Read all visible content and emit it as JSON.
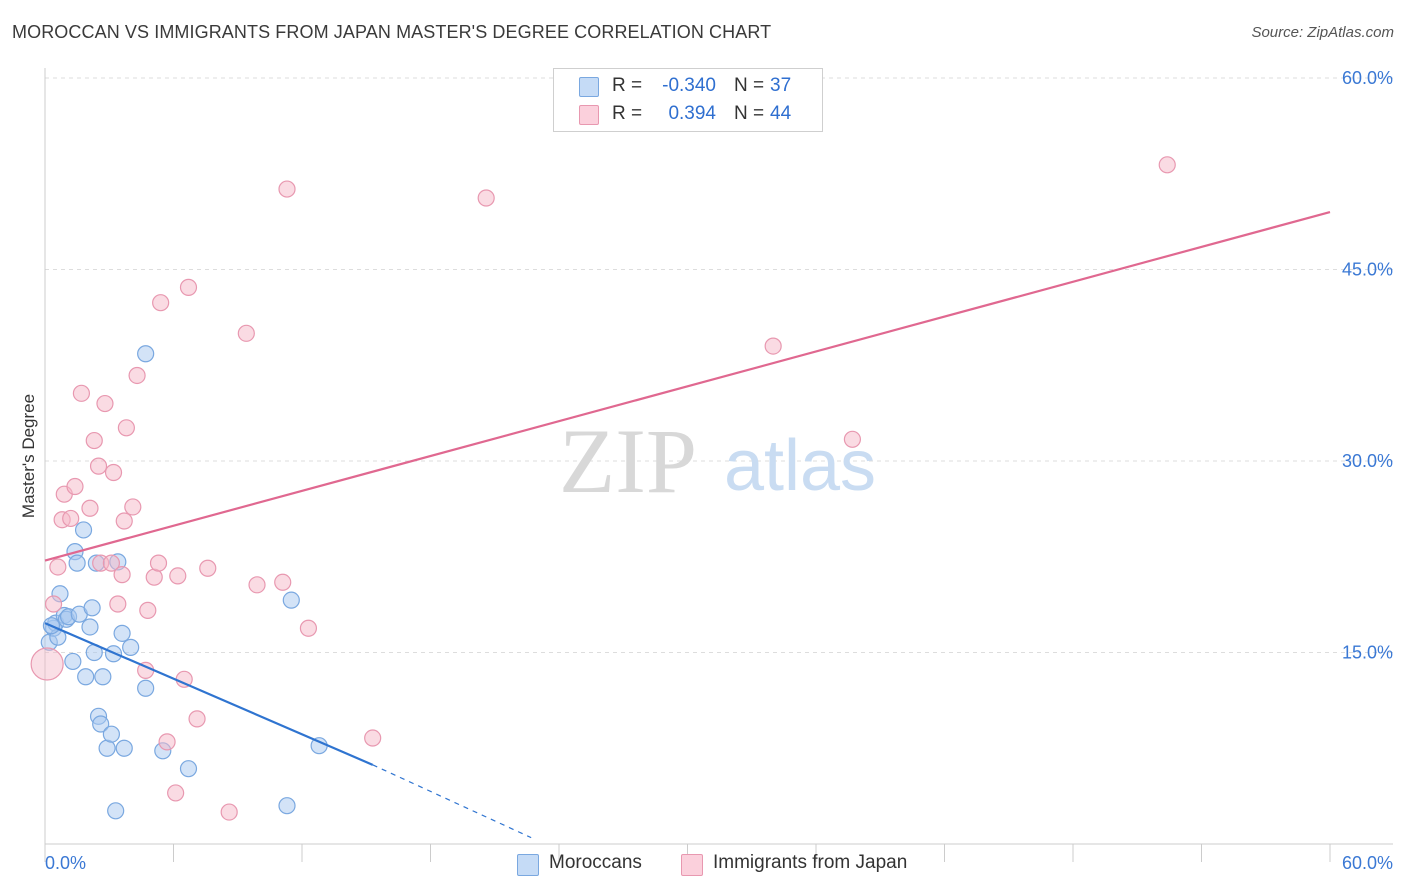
{
  "title": "MOROCCAN VS IMMIGRANTS FROM JAPAN MASTER'S DEGREE CORRELATION CHART",
  "source": "Source: ZipAtlas.com",
  "watermark": {
    "zip": "ZIP",
    "atlas": "atlas"
  },
  "legend": {
    "rows": [
      {
        "r_label": "R =",
        "r_value": "-0.340",
        "n_label": "N =",
        "n_value": "37",
        "color": "#a8c8f0"
      },
      {
        "r_label": "R =",
        "r_value": "0.394",
        "n_label": "N =",
        "n_value": "44",
        "color": "#f5b8c8"
      }
    ]
  },
  "bottom_legend": [
    {
      "label": "Moroccans",
      "color": "#a8c8f0"
    },
    {
      "label": "Immigrants from Japan",
      "color": "#f5b8c8"
    }
  ],
  "chart_data": {
    "type": "scatter",
    "title": "MOROCCAN VS IMMIGRANTS FROM JAPAN MASTER'S DEGREE CORRELATION CHART",
    "xlabel": "",
    "ylabel": "Master's Degree",
    "xlim": [
      0,
      60
    ],
    "ylim": [
      0,
      60
    ],
    "x_tick_labels": [
      "0.0%",
      "60.0%"
    ],
    "y_ticks": [
      15,
      30,
      45,
      60
    ],
    "y_tick_labels": [
      "15.0%",
      "30.0%",
      "45.0%",
      "60.0%"
    ],
    "grid": true,
    "series": [
      {
        "name": "Moroccans",
        "color": "#a8c8f0",
        "stroke": "#7aa8e0",
        "line_color": "#2f74d0",
        "trend": {
          "x0": 0,
          "y0": 17.3,
          "x1": 15.3,
          "y1": 6.2,
          "dash_to_x": 22.7,
          "dash_to_y": 0.5
        },
        "points": [
          [
            0.2,
            15.8
          ],
          [
            0.4,
            16.9
          ],
          [
            0.5,
            17.3
          ],
          [
            0.6,
            16.2
          ],
          [
            0.7,
            19.6
          ],
          [
            0.9,
            17.9
          ],
          [
            1.0,
            17.6
          ],
          [
            1.1,
            17.8
          ],
          [
            1.3,
            14.3
          ],
          [
            1.4,
            22.9
          ],
          [
            1.5,
            22.0
          ],
          [
            1.6,
            18.0
          ],
          [
            1.8,
            24.6
          ],
          [
            1.9,
            13.1
          ],
          [
            2.1,
            17.0
          ],
          [
            2.2,
            18.5
          ],
          [
            2.3,
            15.0
          ],
          [
            2.4,
            22.0
          ],
          [
            2.5,
            10.0
          ],
          [
            2.6,
            9.4
          ],
          [
            2.7,
            13.1
          ],
          [
            2.9,
            7.5
          ],
          [
            3.1,
            8.6
          ],
          [
            3.2,
            14.9
          ],
          [
            3.3,
            2.6
          ],
          [
            3.4,
            22.1
          ],
          [
            3.6,
            16.5
          ],
          [
            3.7,
            7.5
          ],
          [
            4.0,
            15.4
          ],
          [
            4.7,
            38.4
          ],
          [
            4.7,
            12.2
          ],
          [
            5.5,
            7.3
          ],
          [
            6.7,
            5.9
          ],
          [
            11.3,
            3.0
          ],
          [
            11.5,
            19.1
          ],
          [
            12.8,
            7.7
          ],
          [
            0.3,
            17.1
          ]
        ]
      },
      {
        "name": "Immigrants from Japan",
        "color": "#f5b8c8",
        "stroke": "#e898b0",
        "line_color": "#e06890",
        "trend": {
          "x0": 0,
          "y0": 22.2,
          "x1": 60,
          "y1": 49.5
        },
        "points": [
          [
            0.1,
            14.1
          ],
          [
            0.4,
            18.8
          ],
          [
            0.6,
            21.7
          ],
          [
            0.8,
            25.4
          ],
          [
            0.9,
            27.4
          ],
          [
            1.2,
            25.5
          ],
          [
            1.4,
            28.0
          ],
          [
            1.7,
            35.3
          ],
          [
            2.1,
            26.3
          ],
          [
            2.3,
            31.6
          ],
          [
            2.5,
            29.6
          ],
          [
            2.6,
            22.0
          ],
          [
            2.8,
            34.5
          ],
          [
            3.1,
            22.0
          ],
          [
            3.2,
            29.1
          ],
          [
            3.4,
            18.8
          ],
          [
            3.6,
            21.1
          ],
          [
            3.7,
            25.3
          ],
          [
            3.8,
            32.6
          ],
          [
            4.1,
            26.4
          ],
          [
            4.3,
            36.7
          ],
          [
            4.7,
            13.6
          ],
          [
            4.8,
            18.3
          ],
          [
            5.1,
            20.9
          ],
          [
            5.3,
            22.0
          ],
          [
            5.4,
            42.4
          ],
          [
            5.7,
            8.0
          ],
          [
            6.1,
            4.0
          ],
          [
            6.2,
            21.0
          ],
          [
            6.5,
            12.9
          ],
          [
            6.7,
            43.6
          ],
          [
            7.1,
            9.8
          ],
          [
            7.6,
            21.6
          ],
          [
            8.6,
            2.5
          ],
          [
            9.4,
            40.0
          ],
          [
            9.9,
            20.3
          ],
          [
            11.1,
            20.5
          ],
          [
            11.3,
            51.3
          ],
          [
            12.3,
            16.9
          ],
          [
            15.3,
            8.3
          ],
          [
            20.6,
            50.6
          ],
          [
            34.0,
            39.0
          ],
          [
            37.7,
            31.7
          ],
          [
            52.4,
            53.2
          ]
        ]
      }
    ]
  }
}
